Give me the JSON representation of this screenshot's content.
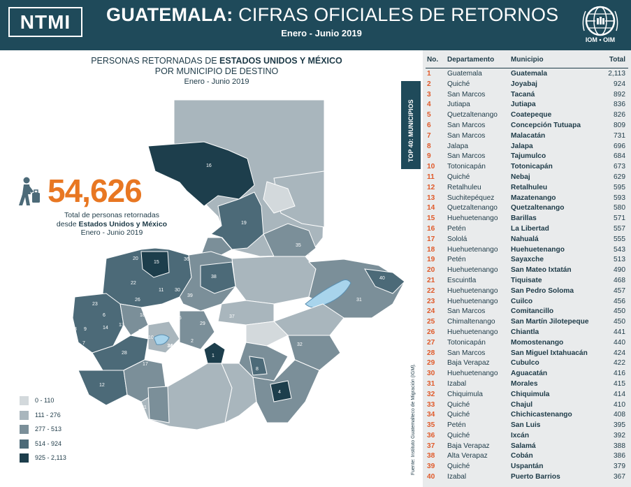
{
  "header": {
    "badge": "NTMI",
    "title_bold": "GUATEMALA:",
    "title_rest": " CIFRAS OFICIALES DE RETORNOS",
    "subtitle": "Enero - Junio 2019",
    "logo_text": "IOM • OIM"
  },
  "map_header": {
    "line1_pre": "PERSONAS RETORNADAS DE ",
    "line1_bold": "ESTADOS UNIDOS Y MÉXICO",
    "line2": "POR MUNICIPIO DE DESTINO",
    "period": "Enero - Junio 2019"
  },
  "summary": {
    "total": "54,626",
    "desc_line1": "Total de personas retornadas",
    "desc_line2_pre": "desde ",
    "desc_line2_bold": "Estados Unidos y México",
    "desc_line3": "Enero - Junio 2019"
  },
  "legend": [
    {
      "label": "0 - 110",
      "color": "#d3d9dc"
    },
    {
      "label": "111 - 276",
      "color": "#a9b6bd"
    },
    {
      "label": "277 - 513",
      "color": "#7b8f99"
    },
    {
      "label": "514 - 924",
      "color": "#4c6a78"
    },
    {
      "label": "925 - 2,113",
      "color": "#1d3e4c"
    }
  ],
  "map_labels": [
    "16",
    "19",
    "35",
    "36",
    "38",
    "40",
    "31",
    "20",
    "15",
    "23",
    "11",
    "30",
    "39",
    "22",
    "6",
    "18",
    "13",
    "14",
    "26",
    "33",
    "34",
    "37",
    "9",
    "7",
    "3",
    "2",
    "28",
    "25",
    "17",
    "29",
    "32",
    "1",
    "5",
    "8",
    "4",
    "12",
    "21",
    "24",
    "27",
    "10"
  ],
  "source_note": "Fuente: Instituto Guatemalteco de Migración (IGM).",
  "table_side_label": "TOP 40: MUNICIPIOS",
  "table": {
    "headers": {
      "no": "No.",
      "dep": "Departamento",
      "mun": "Municipio",
      "tot": "Total"
    },
    "rows": [
      {
        "no": "1",
        "dep": "Guatemala",
        "mun": "Guatemala",
        "tot": "2,113"
      },
      {
        "no": "2",
        "dep": "Quiché",
        "mun": "Joyabaj",
        "tot": "924"
      },
      {
        "no": "3",
        "dep": "San Marcos",
        "mun": "Tacaná",
        "tot": "892"
      },
      {
        "no": "4",
        "dep": "Jutiapa",
        "mun": "Jutiapa",
        "tot": "836"
      },
      {
        "no": "5",
        "dep": "Quetzaltenango",
        "mun": "Coatepeque",
        "tot": "826"
      },
      {
        "no": "6",
        "dep": "San Marcos",
        "mun": "Concepción Tutuapa",
        "tot": "809"
      },
      {
        "no": "7",
        "dep": "San Marcos",
        "mun": "Malacatán",
        "tot": "731"
      },
      {
        "no": "8",
        "dep": "Jalapa",
        "mun": "Jalapa",
        "tot": "696"
      },
      {
        "no": "9",
        "dep": "San Marcos",
        "mun": "Tajumulco",
        "tot": "684"
      },
      {
        "no": "10",
        "dep": "Totonicapán",
        "mun": "Totonicapán",
        "tot": "673"
      },
      {
        "no": "11",
        "dep": "Quiché",
        "mun": "Nebaj",
        "tot": "629"
      },
      {
        "no": "12",
        "dep": "Retalhuleu",
        "mun": "Retalhuleu",
        "tot": "595"
      },
      {
        "no": "13",
        "dep": "Suchitepéquez",
        "mun": "Mazatenango",
        "tot": "593"
      },
      {
        "no": "14",
        "dep": "Quetzaltenango",
        "mun": "Quetzaltenango",
        "tot": "580"
      },
      {
        "no": "15",
        "dep": "Huehuetenango",
        "mun": "Barillas",
        "tot": "571"
      },
      {
        "no": "16",
        "dep": "Petén",
        "mun": "La Libertad",
        "tot": "557"
      },
      {
        "no": "17",
        "dep": "Sololá",
        "mun": "Nahualá",
        "tot": "555"
      },
      {
        "no": "18",
        "dep": "Huehuetenango",
        "mun": "Huehuetenango",
        "tot": "543"
      },
      {
        "no": "19",
        "dep": "Petén",
        "mun": "Sayaxche",
        "tot": "513"
      },
      {
        "no": "20",
        "dep": "Huehuetenango",
        "mun": "San Mateo Ixtatán",
        "tot": "490"
      },
      {
        "no": "21",
        "dep": "Escuintla",
        "mun": "Tiquisate",
        "tot": "468"
      },
      {
        "no": "22",
        "dep": "Huehuetenango",
        "mun": "San Pedro Soloma",
        "tot": "457"
      },
      {
        "no": "23",
        "dep": "Huehuetenango",
        "mun": "Cuilco",
        "tot": "456"
      },
      {
        "no": "24",
        "dep": "San Marcos",
        "mun": "Comitancillo",
        "tot": "450"
      },
      {
        "no": "25",
        "dep": "Chimaltenango",
        "mun": "San Martín Jilotepeque",
        "tot": "450"
      },
      {
        "no": "26",
        "dep": "Huehuetenango",
        "mun": "Chiantla",
        "tot": "441"
      },
      {
        "no": "27",
        "dep": "Totonicapán",
        "mun": "Momostenango",
        "tot": "440"
      },
      {
        "no": "28",
        "dep": "San Marcos",
        "mun": "San Miguel Ixtahuacán",
        "tot": "424"
      },
      {
        "no": "29",
        "dep": "Baja Verapaz",
        "mun": "Cubulco",
        "tot": "422"
      },
      {
        "no": "30",
        "dep": "Huehuetenango",
        "mun": "Aguacatán",
        "tot": "416"
      },
      {
        "no": "31",
        "dep": "Izabal",
        "mun": "Morales",
        "tot": "415"
      },
      {
        "no": "32",
        "dep": "Chiquimula",
        "mun": "Chiquimula",
        "tot": "414"
      },
      {
        "no": "33",
        "dep": "Quiché",
        "mun": "Chajul",
        "tot": "410"
      },
      {
        "no": "34",
        "dep": "Quiché",
        "mun": "Chichicastenango",
        "tot": "408"
      },
      {
        "no": "35",
        "dep": "Petén",
        "mun": "San Luis",
        "tot": "395"
      },
      {
        "no": "36",
        "dep": "Quiché",
        "mun": "Ixcán",
        "tot": "392"
      },
      {
        "no": "37",
        "dep": "Baja Verapaz",
        "mun": "Salamá",
        "tot": "388"
      },
      {
        "no": "38",
        "dep": "Alta Verapaz",
        "mun": "Cobán",
        "tot": "386"
      },
      {
        "no": "39",
        "dep": "Quiché",
        "mun": "Uspantán",
        "tot": "379"
      },
      {
        "no": "40",
        "dep": "Izabal",
        "mun": "Puerto Barrios",
        "tot": "367"
      }
    ]
  }
}
